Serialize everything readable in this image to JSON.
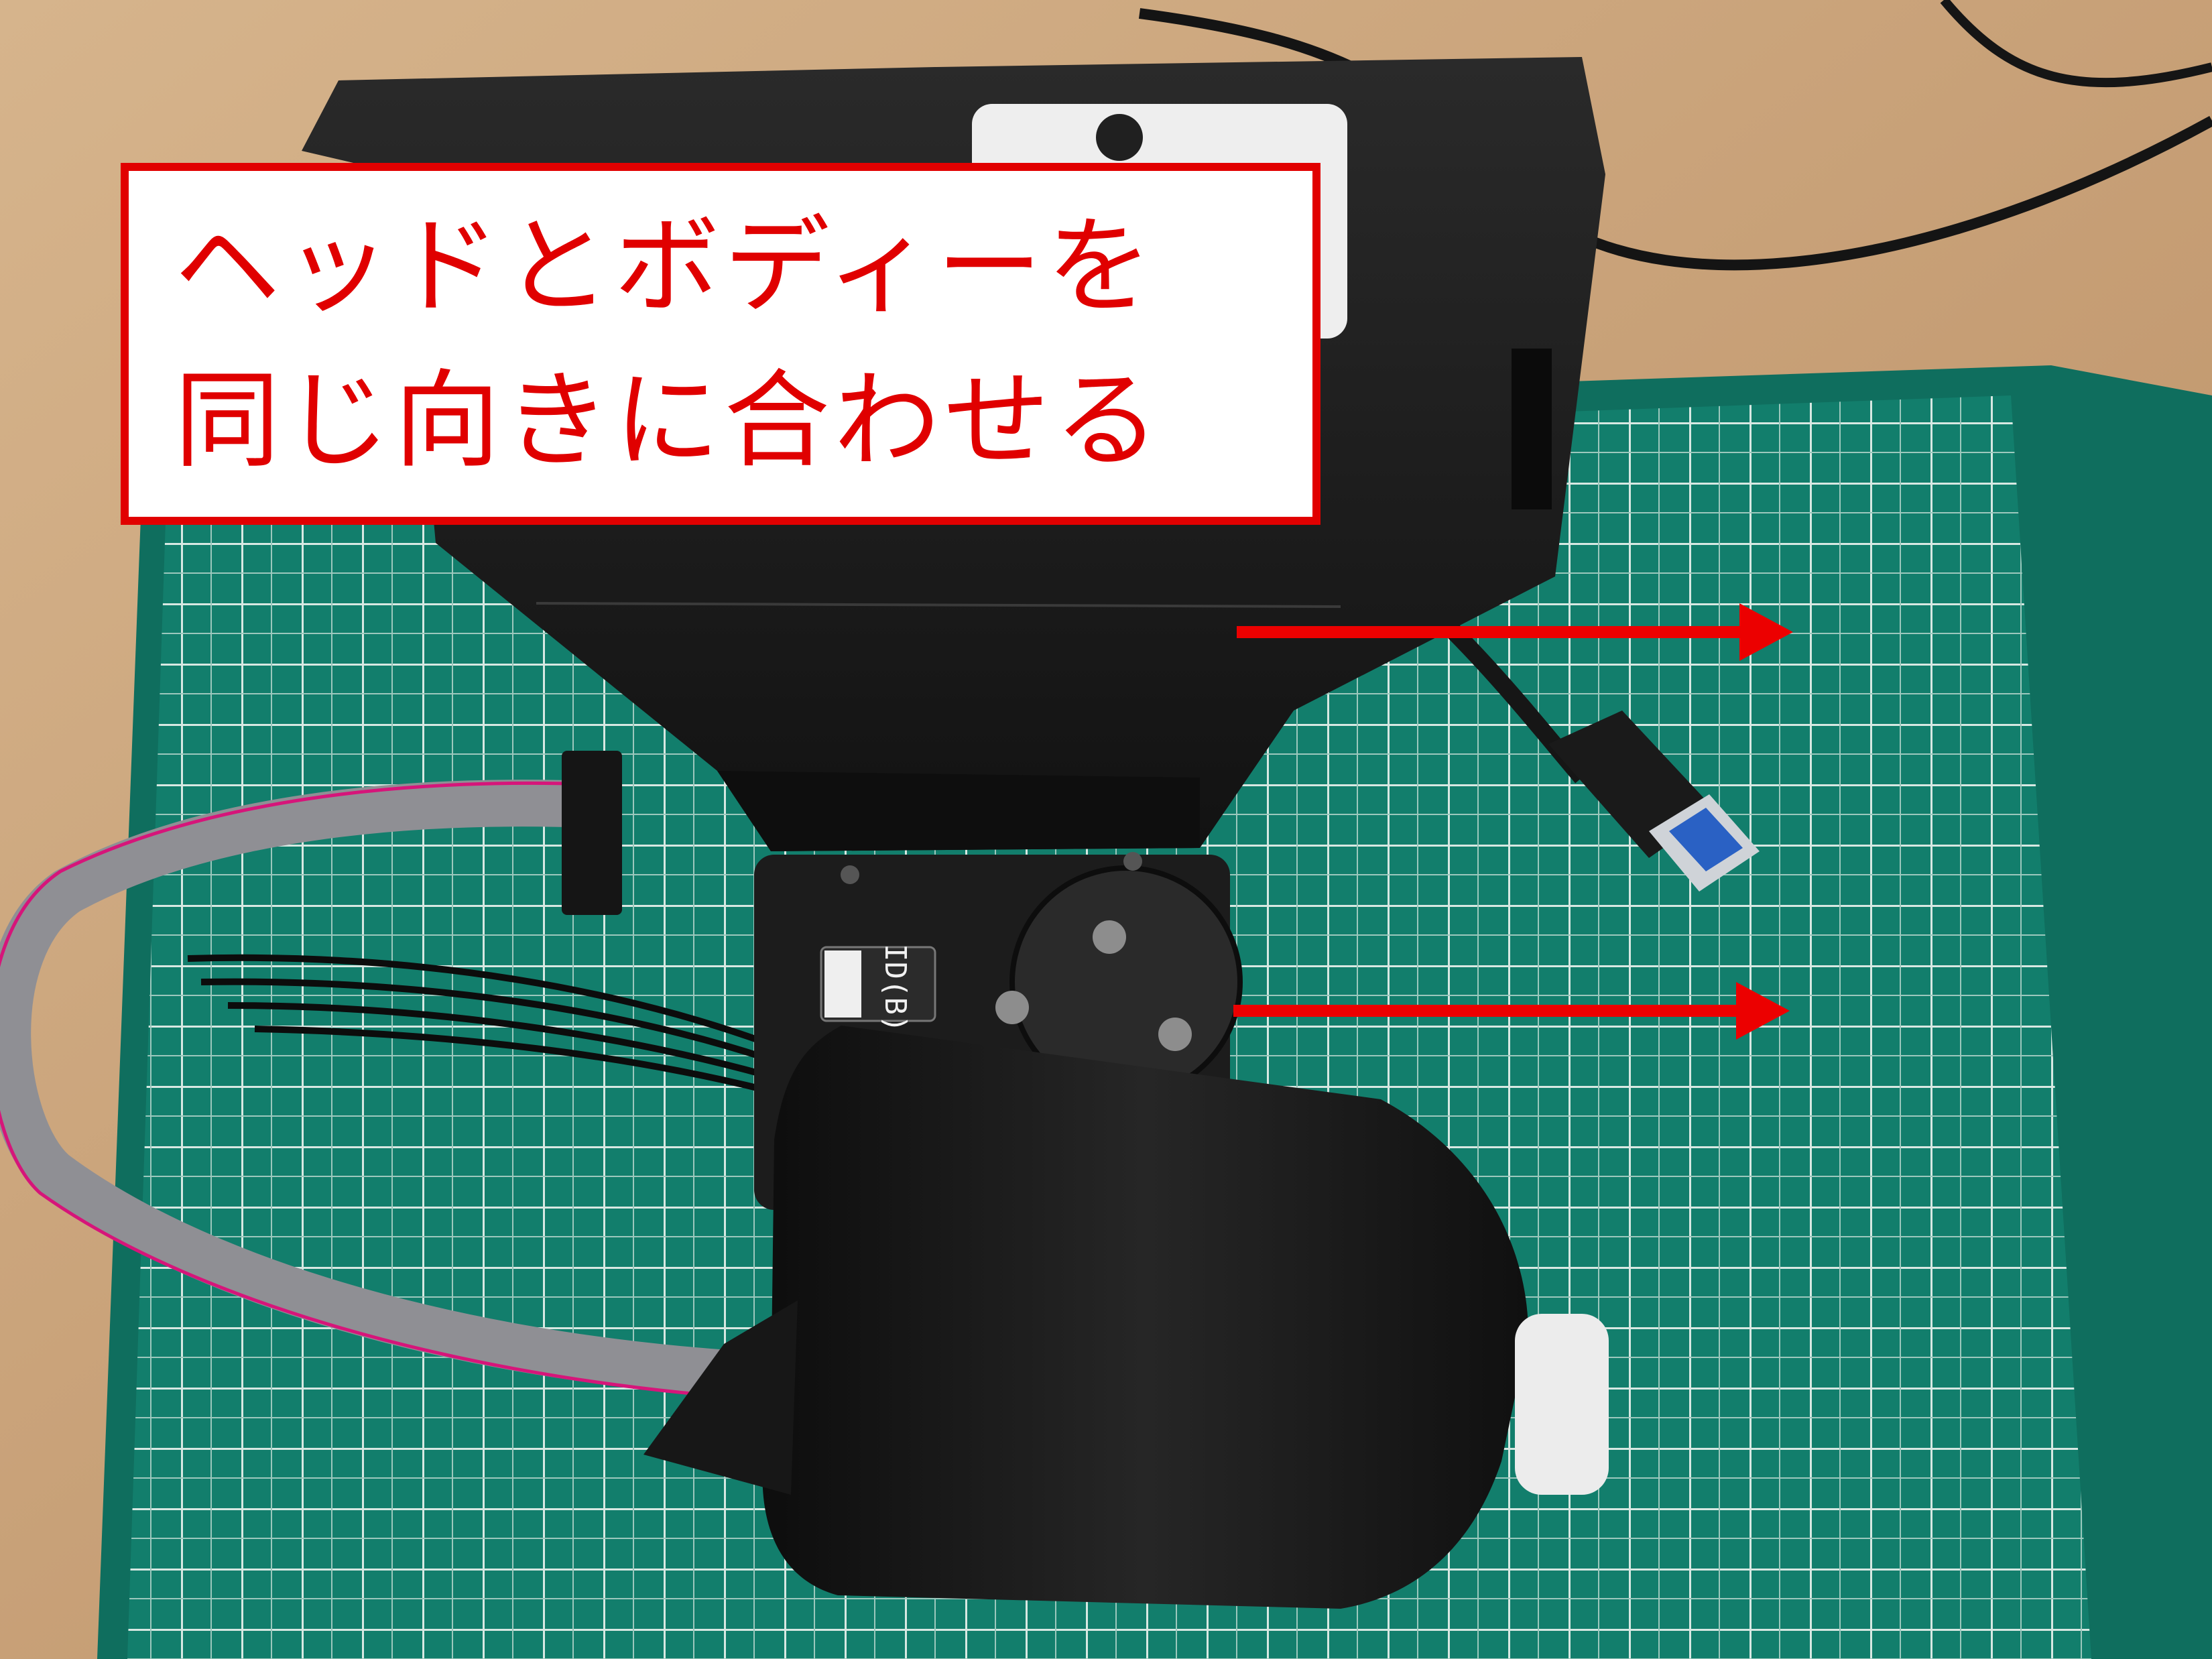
{
  "callout": {
    "line1": "ヘッドとボディーを",
    "line2": "同じ向きに合わせる"
  },
  "servo_label": "ID(B)",
  "colors": {
    "accent": "#e10000",
    "mat": "#0e7a68",
    "table": "#c9a27a",
    "body": "#161616"
  },
  "icons": {
    "arrow": "arrow-right-icon"
  }
}
